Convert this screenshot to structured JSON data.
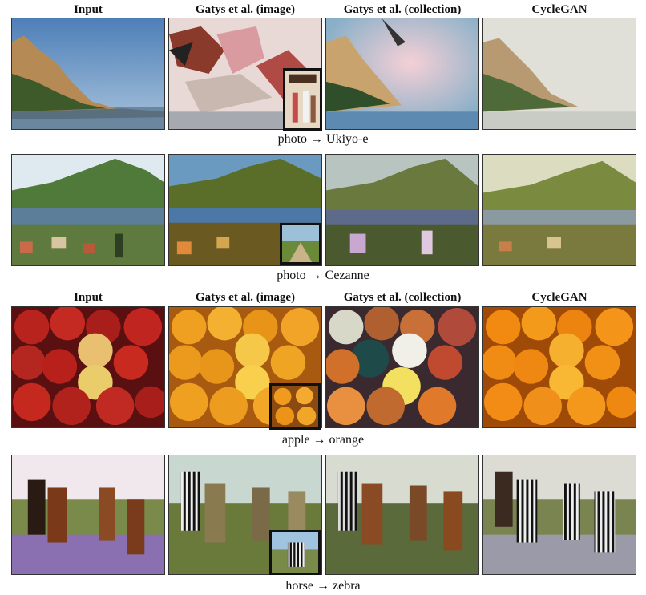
{
  "headers_top": [
    "Input",
    "Gatys et al. (image)",
    "Gatys et al. (collection)",
    "CycleGAN"
  ],
  "headers_bottom": [
    "Input",
    "Gatys et al. (image)",
    "Gatys et al. (collection)",
    "CycleGAN"
  ],
  "captions": {
    "ukiyoe": "photo → Ukiyo-e",
    "cezanne": "photo → Cezanne",
    "orange": "apple → orange",
    "zebra": "horse → zebra"
  }
}
